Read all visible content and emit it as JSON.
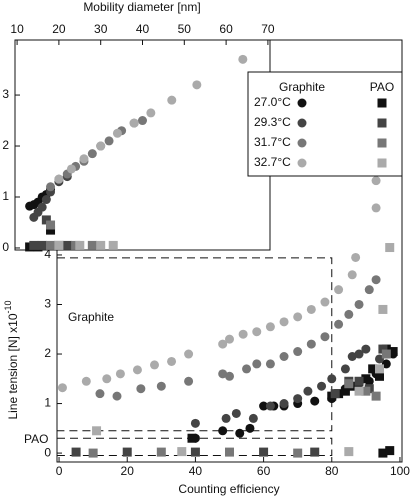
{
  "chart_data": [
    {
      "type": "scatter",
      "xlabel": "Counting efficiency",
      "ylabel": "Line tension [N] x10",
      "ylabel_exponent": "-10",
      "xlim": [
        -0.6,
        100.6
      ],
      "ylim": [
        -0.18,
        8.34
      ],
      "xticks": [
        0,
        20,
        40,
        60,
        80,
        100
      ],
      "yticks": [
        0,
        1,
        2,
        3,
        4
      ],
      "annotations": [
        "Graphite",
        "PAO"
      ],
      "regions": [
        {
          "x": [
            -0.6,
            80
          ],
          "y": [
            0.45,
            3.94
          ]
        },
        {
          "x": [
            -0.6,
            80
          ],
          "y": [
            -0.05,
            0.3
          ]
        }
      ],
      "graphite": [
        {
          "name": "27.0°C",
          "color": "#111111",
          "x": [
            40,
            48,
            53,
            56,
            60,
            63,
            66,
            70,
            75,
            80,
            84,
            88,
            91,
            93,
            96,
            98
          ],
          "values": [
            0.3,
            0.45,
            0.4,
            0.5,
            0.95,
            0.95,
            0.95,
            1.0,
            1.05,
            1.1,
            1.3,
            1.4,
            1.45,
            1.6,
            1.8,
            2.0
          ]
        },
        {
          "name": "29.3°C",
          "color": "#444444",
          "x": [
            40,
            49,
            52,
            57,
            62,
            66,
            70,
            73,
            77,
            80,
            84,
            86,
            88,
            90,
            94,
            97
          ],
          "values": [
            0.6,
            0.7,
            0.8,
            0.7,
            0.95,
            1.0,
            1.1,
            1.25,
            1.35,
            1.5,
            1.7,
            1.95,
            2.0,
            2.1,
            1.9,
            2.05
          ]
        },
        {
          "name": "31.7°C",
          "color": "#777777",
          "x": [
            12,
            17,
            24,
            30,
            38,
            48,
            50,
            55,
            58,
            62,
            66,
            70,
            74,
            78,
            82,
            85,
            88,
            91,
            93,
            96
          ],
          "values": [
            1.2,
            1.15,
            1.3,
            1.35,
            1.45,
            1.6,
            1.55,
            1.7,
            1.8,
            1.8,
            1.95,
            2.05,
            2.2,
            2.35,
            2.6,
            2.8,
            3.0,
            3.3,
            3.5,
            2.1
          ]
        },
        {
          "name": "32.7°C",
          "color": "#aaaaaa",
          "x": [
            1,
            8,
            14,
            18,
            23,
            28,
            33,
            38,
            48,
            50,
            54,
            58,
            62,
            66,
            70,
            74,
            78,
            82,
            86,
            87,
            93,
            93
          ],
          "values": [
            1.32,
            1.45,
            1.5,
            1.6,
            1.68,
            1.78,
            1.85,
            2.0,
            2.2,
            2.3,
            2.4,
            2.45,
            2.55,
            2.65,
            2.75,
            2.9,
            3.05,
            3.3,
            3.6,
            3.95,
            4.95,
            5.5
          ]
        }
      ],
      "pao": [
        {
          "color": "#111111",
          "x": [
            39,
            80,
            82,
            84,
            86,
            90,
            92,
            94,
            95,
            96,
            97,
            98
          ],
          "values": [
            0.3,
            1.15,
            1.2,
            1.25,
            1.35,
            1.5,
            1.7,
            1.55,
            0.0,
            2.1,
            0.05,
            2.05
          ]
        },
        {
          "color": "#444444",
          "x": [
            5,
            20,
            40,
            60,
            75,
            81,
            85,
            88,
            91,
            95
          ],
          "values": [
            0.02,
            0.02,
            0.02,
            0.02,
            0.02,
            1.2,
            1.45,
            1.45,
            1.3,
            2.1
          ]
        },
        {
          "color": "#777777",
          "x": [
            10,
            30,
            50,
            70,
            85,
            90,
            93,
            96
          ],
          "values": [
            0.0,
            0.02,
            0.02,
            0.0,
            1.4,
            1.25,
            1.15,
            2.0
          ]
        },
        {
          "color": "#aaaaaa",
          "x": [
            11,
            36,
            85,
            88,
            94,
            95,
            97
          ],
          "values": [
            0.45,
            0.03,
            0.03,
            1.25,
            1.7,
            2.9,
            4.15
          ]
        }
      ],
      "legend_columns": [
        "Graphite",
        "PAO"
      ]
    },
    {
      "type": "scatter",
      "xlabel": "Mobility diameter [nm]",
      "xlim": [
        9.5,
        70.5
      ],
      "ylim": [
        -0.04,
        4.08
      ],
      "xticks": [
        10,
        20,
        30,
        40,
        50,
        60,
        70
      ],
      "yticks": [
        0,
        1,
        2,
        3
      ],
      "graphite": [
        {
          "color": "#111111",
          "x": [
            13,
            14,
            15,
            16,
            17,
            18
          ],
          "values": [
            0.82,
            0.85,
            0.9,
            1.0,
            1.05,
            1.15
          ]
        },
        {
          "color": "#444444",
          "x": [
            14,
            15,
            16,
            17,
            18,
            20,
            22
          ],
          "values": [
            0.6,
            0.7,
            0.8,
            0.95,
            1.1,
            1.3,
            1.4
          ]
        },
        {
          "color": "#777777",
          "x": [
            18,
            20,
            22,
            24,
            26,
            28,
            30,
            32,
            35,
            38,
            40
          ],
          "values": [
            1.2,
            1.35,
            1.45,
            1.6,
            1.7,
            1.85,
            2.0,
            2.1,
            2.3,
            2.45,
            2.5
          ]
        },
        {
          "color": "#aaaaaa",
          "x": [
            20,
            23,
            26,
            30,
            34,
            38,
            42,
            47,
            53,
            64
          ],
          "values": [
            1.35,
            1.55,
            1.75,
            2.0,
            2.25,
            2.45,
            2.65,
            2.9,
            3.2,
            3.7
          ]
        }
      ],
      "pao": [
        {
          "color": "#111111",
          "x": [
            13,
            15,
            18
          ],
          "values": [
            0.02,
            0.02,
            0.35
          ]
        },
        {
          "color": "#444444",
          "x": [
            14,
            16,
            17,
            20,
            22
          ],
          "values": [
            0.05,
            0.05,
            0.55,
            0.05,
            0.05
          ]
        },
        {
          "color": "#777777",
          "x": [
            18,
            18,
            24,
            28
          ],
          "values": [
            0.45,
            0.05,
            0.05,
            0.05
          ]
        },
        {
          "color": "#aaaaaa",
          "x": [
            20,
            25,
            30,
            33
          ],
          "values": [
            0.05,
            0.05,
            0.05,
            0.05
          ]
        }
      ]
    }
  ]
}
